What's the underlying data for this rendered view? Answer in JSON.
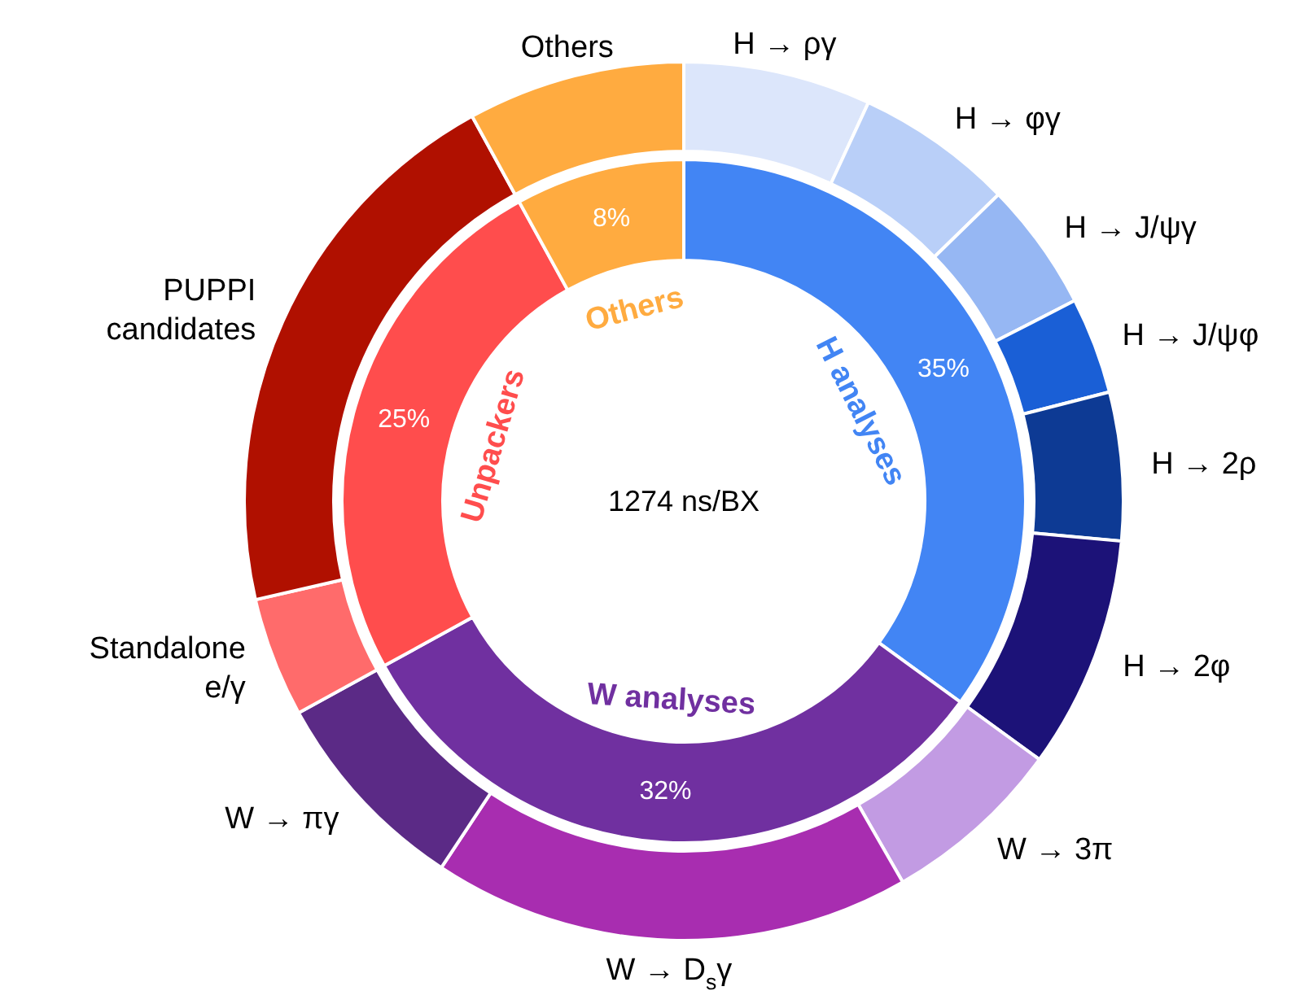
{
  "chart_data": [
    {
      "type": "donut",
      "categories": [
        "H analyses",
        "W analyses",
        "Unpackers",
        "Others"
      ],
      "values": [
        35,
        32,
        25,
        8
      ],
      "colors": [
        "#4285f4",
        "#7030a0",
        "#ff4d4d",
        "#ffab40"
      ],
      "value_labels": [
        "35%",
        "32%",
        "25%",
        "8%"
      ],
      "annotations": [
        "1274 ns/BX"
      ]
    },
    {
      "type": "donut",
      "categories": [
        "H → ργ",
        "H → φγ",
        "H → J/ψγ",
        "H → J/ψφ",
        "H → 2ρ",
        "H → 2φ",
        "W → 3π",
        "W → D$_{s}$γ",
        "W → πγ",
        "Standalone\ne/γ",
        "PUPPI\ncandidates",
        "Others"
      ],
      "values": [
        6.9,
        5.8,
        4.75,
        3.55,
        5.45,
        8.55,
        6.7,
        17.6,
        7.7,
        4.4,
        20.6,
        8
      ],
      "colors": [
        "#dce6fb",
        "#b9cff8",
        "#96b7f3",
        "#1a5fd6",
        "#0d3a94",
        "#1c1278",
        "#c29be3",
        "#a82db0",
        "#5b2a86",
        "#ff6b6b",
        "#b01000",
        "#ffab40"
      ]
    }
  ]
}
